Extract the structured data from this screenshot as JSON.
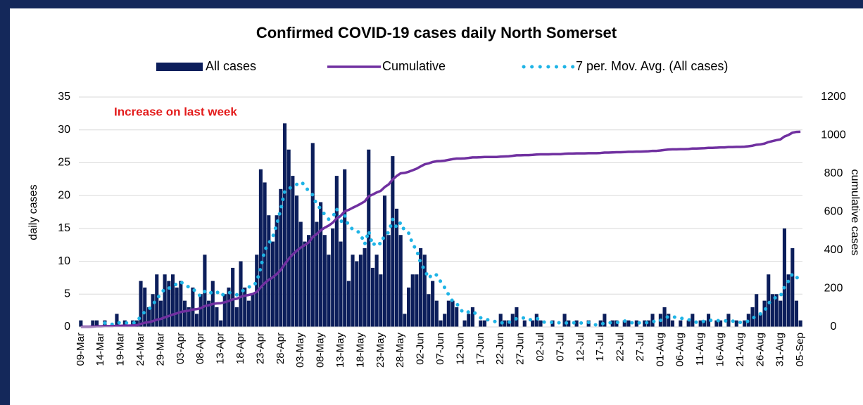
{
  "chart_data": {
    "type": "bar",
    "title": "Confirmed COVID-19 cases daily North Somerset",
    "annotation": "Increase on last week",
    "ylabel": "daily cases",
    "y2label": "cumulative cases",
    "ylim": [
      0,
      35
    ],
    "yticks": [
      0,
      5,
      10,
      15,
      20,
      25,
      30,
      35
    ],
    "y2lim": [
      0,
      1200
    ],
    "y2ticks": [
      0,
      200,
      400,
      600,
      800,
      1000,
      1200
    ],
    "grid": true,
    "categories": [
      "09-Mar",
      null,
      null,
      null,
      null,
      "14-Mar",
      null,
      null,
      null,
      null,
      "19-Mar",
      null,
      null,
      null,
      null,
      "24-Mar",
      null,
      null,
      null,
      null,
      "29-Mar",
      null,
      null,
      null,
      null,
      "03-Apr",
      null,
      null,
      null,
      null,
      "08-Apr",
      null,
      null,
      null,
      null,
      "13-Apr",
      null,
      null,
      null,
      null,
      "18-Apr",
      null,
      null,
      null,
      null,
      "23-Apr",
      null,
      null,
      null,
      null,
      "28-Apr",
      null,
      null,
      null,
      null,
      "03-May",
      null,
      null,
      null,
      null,
      "08-May",
      null,
      null,
      null,
      null,
      "13-May",
      null,
      null,
      null,
      null,
      "18-May",
      null,
      null,
      null,
      null,
      "23-May",
      null,
      null,
      null,
      null,
      "28-May",
      null,
      null,
      null,
      null,
      "02-Jun",
      null,
      null,
      null,
      null,
      "07-Jun",
      null,
      null,
      null,
      null,
      "12-Jun",
      null,
      null,
      null,
      null,
      "17-Jun",
      null,
      null,
      null,
      null,
      "22-Jun",
      null,
      null,
      null,
      null,
      "27-Jun",
      null,
      null,
      null,
      null,
      "02-Jul",
      null,
      null,
      null,
      null,
      "07-Jul",
      null,
      null,
      null,
      null,
      "12-Jul",
      null,
      null,
      null,
      null,
      "17-Jul",
      null,
      null,
      null,
      null,
      "22-Jul",
      null,
      null,
      null,
      null,
      "27-Jul",
      null,
      null,
      null,
      null,
      "01-Aug",
      null,
      null,
      null,
      null,
      "06-Aug",
      null,
      null,
      null,
      null,
      "11-Aug",
      null,
      null,
      null,
      null,
      "16-Aug",
      null,
      null,
      null,
      null,
      "21-Aug",
      null,
      null,
      null,
      null,
      "26-Aug",
      null,
      null,
      null,
      null,
      "31-Aug",
      null,
      null,
      null,
      null,
      "05-Sep"
    ],
    "series": [
      {
        "name": "All cases",
        "kind": "bar",
        "color": "#0c1e5b",
        "values": [
          1,
          0,
          0,
          1,
          1,
          0,
          1,
          0,
          0,
          2,
          0,
          1,
          0,
          1,
          1,
          7,
          6,
          3,
          5,
          8,
          4,
          8,
          7,
          8,
          6,
          7,
          4,
          3,
          6,
          2,
          5,
          11,
          4,
          7,
          3,
          1,
          5,
          6,
          9,
          3,
          10,
          6,
          4,
          5,
          11,
          24,
          22,
          17,
          13,
          17,
          21,
          31,
          27,
          23,
          20,
          16,
          13,
          14,
          28,
          16,
          19,
          14,
          11,
          15,
          23,
          13,
          24,
          7,
          11,
          10,
          11,
          12,
          27,
          9,
          11,
          8,
          20,
          14,
          26,
          18,
          14,
          2,
          6,
          8,
          8,
          12,
          11,
          5,
          7,
          4,
          1,
          2,
          4,
          4,
          3,
          0,
          1,
          2,
          3,
          0,
          1,
          1,
          0,
          0,
          0,
          2,
          1,
          1,
          2,
          3,
          0,
          1,
          0,
          1,
          2,
          1,
          0,
          0,
          1,
          0,
          0,
          2,
          1,
          0,
          1,
          0,
          0,
          1,
          0,
          0,
          1,
          2,
          0,
          1,
          1,
          0,
          1,
          1,
          0,
          1,
          0,
          1,
          1,
          2,
          0,
          2,
          3,
          2,
          1,
          0,
          1,
          0,
          1,
          2,
          0,
          1,
          1,
          2,
          0,
          1,
          1,
          0,
          2,
          0,
          1,
          0,
          1,
          2,
          3,
          5,
          2,
          4,
          8,
          5,
          5,
          4,
          15,
          8,
          12,
          4,
          1
        ]
      },
      {
        "name": "Cumulative",
        "kind": "line",
        "axis": "y2",
        "color": "#7030a0",
        "values": [
          1,
          1,
          1,
          2,
          3,
          3,
          4,
          4,
          4,
          6,
          6,
          7,
          7,
          8,
          9,
          16,
          22,
          25,
          30,
          38,
          42,
          50,
          57,
          65,
          71,
          78,
          82,
          85,
          91,
          93,
          98,
          109,
          113,
          120,
          123,
          124,
          129,
          135,
          144,
          147,
          157,
          163,
          167,
          172,
          183,
          207,
          229,
          246,
          259,
          276,
          297,
          328,
          355,
          378,
          398,
          414,
          427,
          441,
          469,
          485,
          504,
          518,
          529,
          544,
          567,
          580,
          604,
          611,
          622,
          632,
          643,
          655,
          682,
          691,
          702,
          710,
          730,
          744,
          770,
          788,
          802,
          804,
          810,
          818,
          826,
          838,
          849,
          854,
          861,
          865,
          866,
          868,
          872,
          876,
          879,
          879,
          880,
          882,
          885,
          885,
          886,
          887,
          887,
          887,
          887,
          889,
          890,
          891,
          893,
          896,
          896,
          897,
          897,
          898,
          900,
          901,
          901,
          901,
          902,
          902,
          902,
          904,
          905,
          905,
          906,
          906,
          906,
          907,
          907,
          907,
          908,
          910,
          910,
          911,
          912,
          912,
          913,
          914,
          914,
          915,
          915,
          916,
          917,
          919,
          919,
          921,
          924,
          926,
          927,
          927,
          928,
          928,
          929,
          931,
          931,
          932,
          933,
          935,
          935,
          936,
          937,
          937,
          939,
          939,
          940,
          940,
          941,
          943,
          946,
          951,
          953,
          957,
          965,
          970,
          975,
          979,
          994,
          1002,
          1014,
          1018,
          1019
        ]
      },
      {
        "name": "7 per. Mov. Avg. (All cases)",
        "kind": "dotted",
        "color": "#1fb4e6",
        "values": [
          null,
          null,
          null,
          null,
          null,
          null,
          0.6,
          0.4,
          0.4,
          0.7,
          0.6,
          0.6,
          0.6,
          0.6,
          0.7,
          1.7,
          2.3,
          2.7,
          3.3,
          4.4,
          4.9,
          5.9,
          5.9,
          6.1,
          6.6,
          6.9,
          6.3,
          6.1,
          5.9,
          5.1,
          4.7,
          5.4,
          5.0,
          5.4,
          5.4,
          4.7,
          5.1,
          5.3,
          5.0,
          4.9,
          5.3,
          5.7,
          6.1,
          6.1,
          6.9,
          9.0,
          11.7,
          12.7,
          13.7,
          15.6,
          17.9,
          20.7,
          21.1,
          21.3,
          21.7,
          22.1,
          21.6,
          20.6,
          20.1,
          18.6,
          18.0,
          17.1,
          16.4,
          16.7,
          18.0,
          15.9,
          17.0,
          15.3,
          14.9,
          14.7,
          14.1,
          12.6,
          14.6,
          12.4,
          13.0,
          12.6,
          14.0,
          14.4,
          16.4,
          15.1,
          15.9,
          14.6,
          14.3,
          12.6,
          11.7,
          9.7,
          8.7,
          7.4,
          8.1,
          7.9,
          6.9,
          6.0,
          4.9,
          3.9,
          3.6,
          2.6,
          2.1,
          2.3,
          2.4,
          1.9,
          1.4,
          1.1,
          1.1,
          1.0,
          0.7,
          0.6,
          0.7,
          0.7,
          0.9,
          1.3,
          1.3,
          1.4,
          1.1,
          1.1,
          1.3,
          1.1,
          0.7,
          0.7,
          0.7,
          0.7,
          0.6,
          0.6,
          0.6,
          0.6,
          0.7,
          0.6,
          0.6,
          0.7,
          0.4,
          0.3,
          0.4,
          0.6,
          0.6,
          0.7,
          0.7,
          0.7,
          0.9,
          0.9,
          0.6,
          0.7,
          0.6,
          0.6,
          0.7,
          0.9,
          0.7,
          1.0,
          1.3,
          1.6,
          1.6,
          1.4,
          1.3,
          1.3,
          1.1,
          1.0,
          0.7,
          0.7,
          0.9,
          1.0,
          1.0,
          1.0,
          0.9,
          0.9,
          1.0,
          0.9,
          0.7,
          0.7,
          0.7,
          0.9,
          1.3,
          1.7,
          2.0,
          2.4,
          3.6,
          4.1,
          4.6,
          4.7,
          6.1,
          7.0,
          8.1,
          7.6,
          7.0
        ]
      }
    ]
  }
}
